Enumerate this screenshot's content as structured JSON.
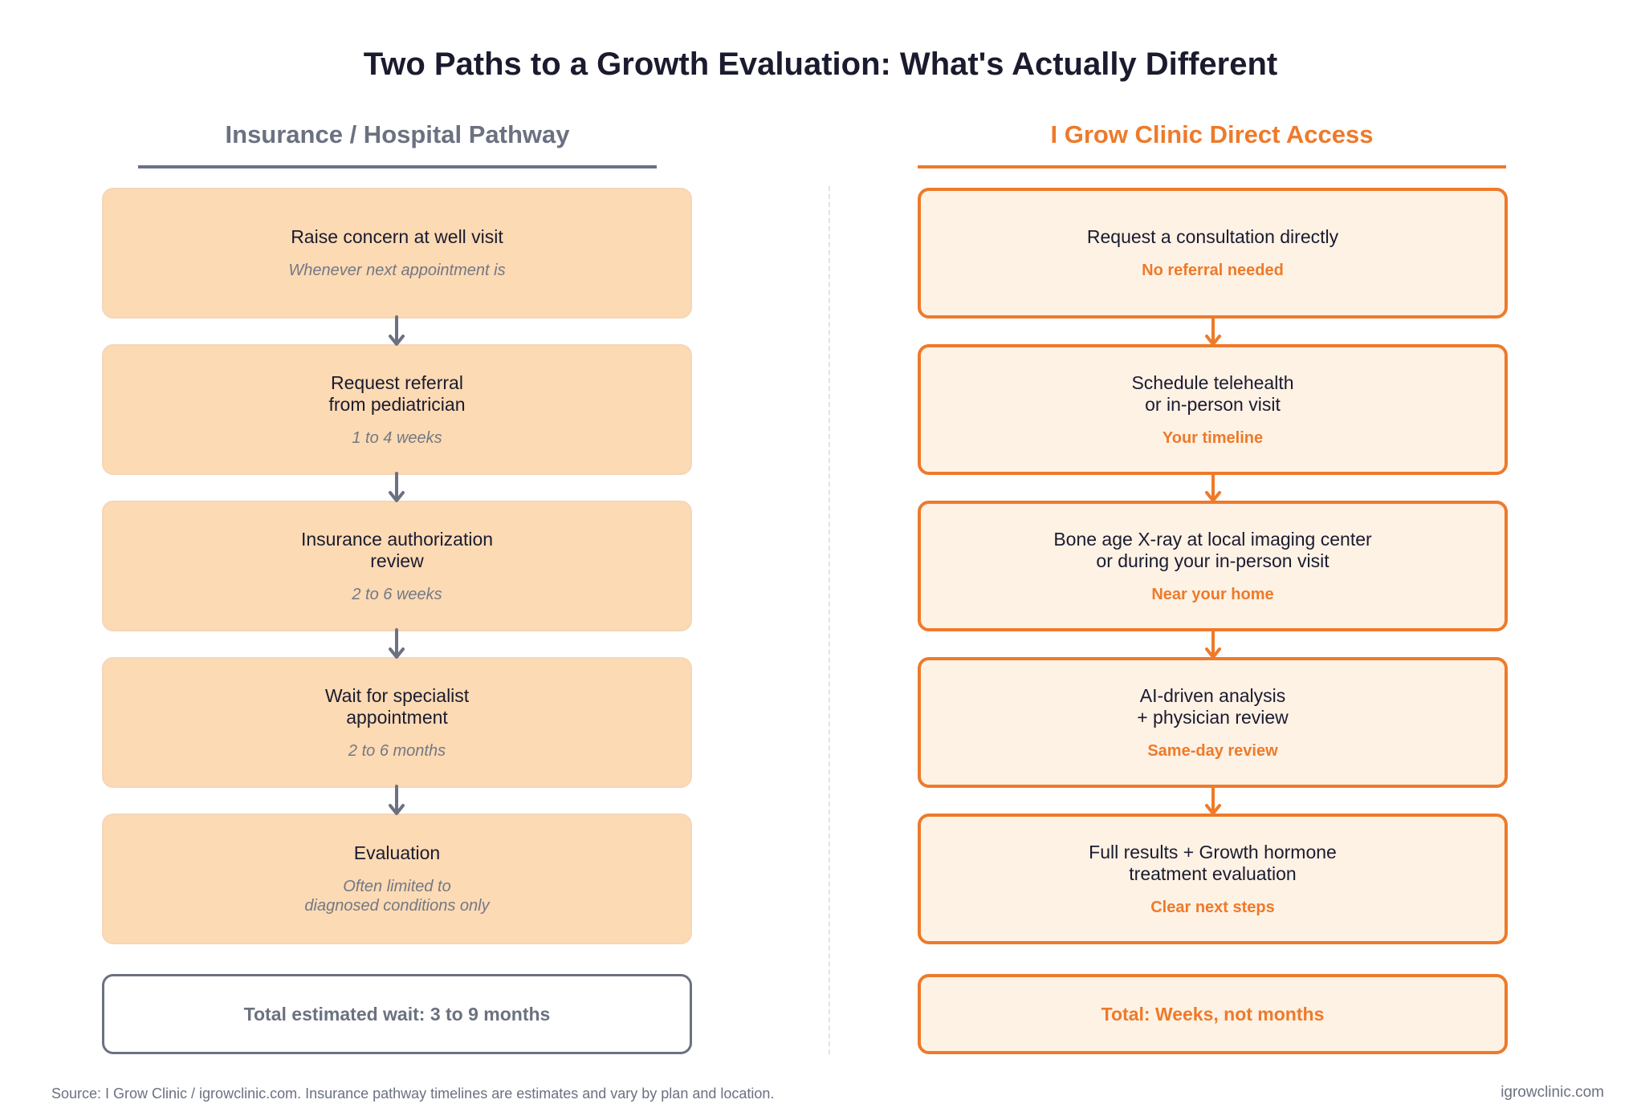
{
  "title": "Two Paths to a Growth Evaluation: What's Actually Different",
  "colors": {
    "insurance": "#6b7180",
    "direct": "#ee7a2a",
    "insurance_fill": "#fcdab4",
    "direct_fill": "#fef2e5"
  },
  "left": {
    "heading": "Insurance / Hospital Pathway",
    "steps": [
      {
        "title": "Raise concern at well visit",
        "sub": "Whenever next appointment is"
      },
      {
        "title": "Request referral\nfrom pediatrician",
        "sub": "1 to 4 weeks"
      },
      {
        "title": "Insurance authorization\nreview",
        "sub": "2 to 6 weeks"
      },
      {
        "title": "Wait for specialist\nappointment",
        "sub": "2 to 6 months"
      },
      {
        "title": "Evaluation",
        "sub": "Often limited to\ndiagnosed conditions only"
      }
    ],
    "total": "Total estimated wait: 3 to 9 months"
  },
  "right": {
    "heading": "I Grow Clinic Direct Access",
    "steps": [
      {
        "title": "Request a consultation directly",
        "sub": "No referral needed"
      },
      {
        "title": "Schedule telehealth\nor in-person visit",
        "sub": "Your timeline"
      },
      {
        "title": "Bone age X-ray at local imaging center\nor during your in-person visit",
        "sub": "Near your home"
      },
      {
        "title": "AI-driven analysis\n+ physician review",
        "sub": "Same-day review"
      },
      {
        "title": "Full results + Growth hormone\ntreatment evaluation",
        "sub": "Clear next steps"
      }
    ],
    "total": "Total: Weeks, not months"
  },
  "footer": {
    "source": "Source: I Grow Clinic / igrowclinic.com. Insurance pathway timelines are estimates and vary by plan and location.",
    "site": "igrowclinic.com"
  }
}
